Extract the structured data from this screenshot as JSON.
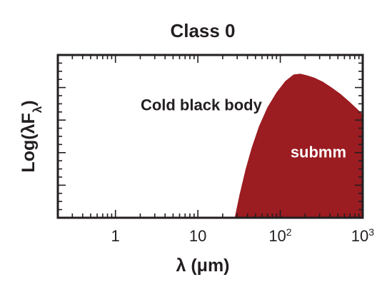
{
  "chart_data": {
    "type": "area",
    "title": "Class 0",
    "xlabel": "λ (μm)",
    "ylabel": "Log(λFλ)",
    "xscale": "log",
    "xlim": [
      0.2,
      1000
    ],
    "ylim": [
      0,
      1
    ],
    "x_ticks": [
      {
        "value": 1,
        "base": "1",
        "exp": ""
      },
      {
        "value": 10,
        "base": "10",
        "exp": ""
      },
      {
        "value": 100,
        "base": "10",
        "exp": "2"
      },
      {
        "value": 1000,
        "base": "10",
        "exp": "3"
      }
    ],
    "grid": false,
    "series": [
      {
        "name": "submm",
        "color": "#9b1c21",
        "x": [
          28,
          32,
          38,
          45,
          55,
          70,
          90,
          115,
          145,
          175,
          210,
          260,
          330,
          420,
          540,
          700,
          850,
          1000
        ],
        "y": [
          0.0,
          0.14,
          0.3,
          0.43,
          0.56,
          0.68,
          0.77,
          0.84,
          0.88,
          0.885,
          0.875,
          0.86,
          0.835,
          0.8,
          0.76,
          0.71,
          0.67,
          0.635
        ]
      }
    ],
    "annotations": [
      {
        "text": "Cold black body",
        "x": 11,
        "y": 0.66,
        "color": "#231f20"
      },
      {
        "text": "submm",
        "x": 290,
        "y": 0.37,
        "color": "#ffffff"
      }
    ]
  }
}
